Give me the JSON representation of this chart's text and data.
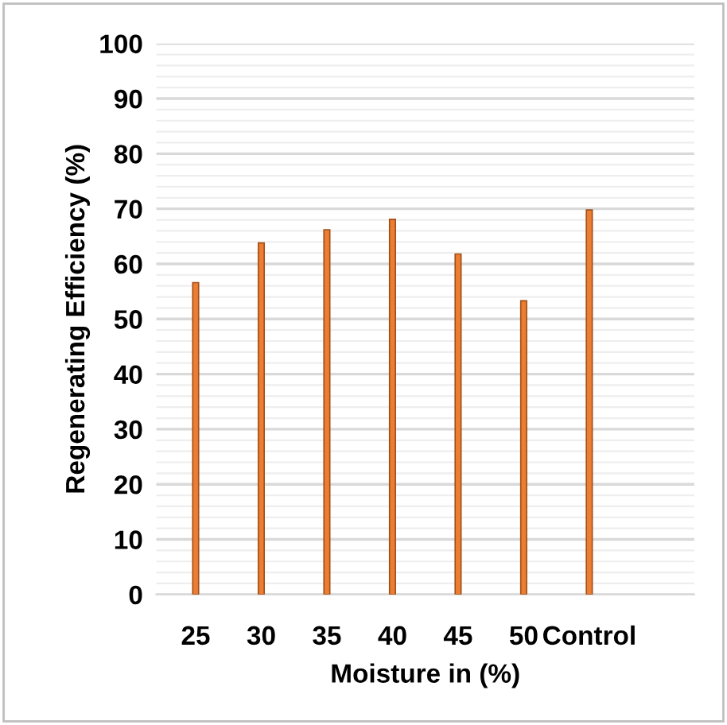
{
  "chart_data": {
    "type": "bar",
    "xlabel": "Moisture in (%)",
    "ylabel": "Regenerating Efficiency (%)",
    "categories": [
      "25",
      "30",
      "35",
      "40",
      "45",
      "50",
      "Control"
    ],
    "values": [
      56.6,
      63.8,
      66.2,
      68.1,
      61.8,
      53.3,
      69.8
    ],
    "color": "#ed7d31",
    "ylim": [
      0,
      100
    ],
    "yticks": [
      0,
      10,
      20,
      30,
      40,
      50,
      60,
      70,
      80,
      90,
      100
    ],
    "grid": "y"
  }
}
